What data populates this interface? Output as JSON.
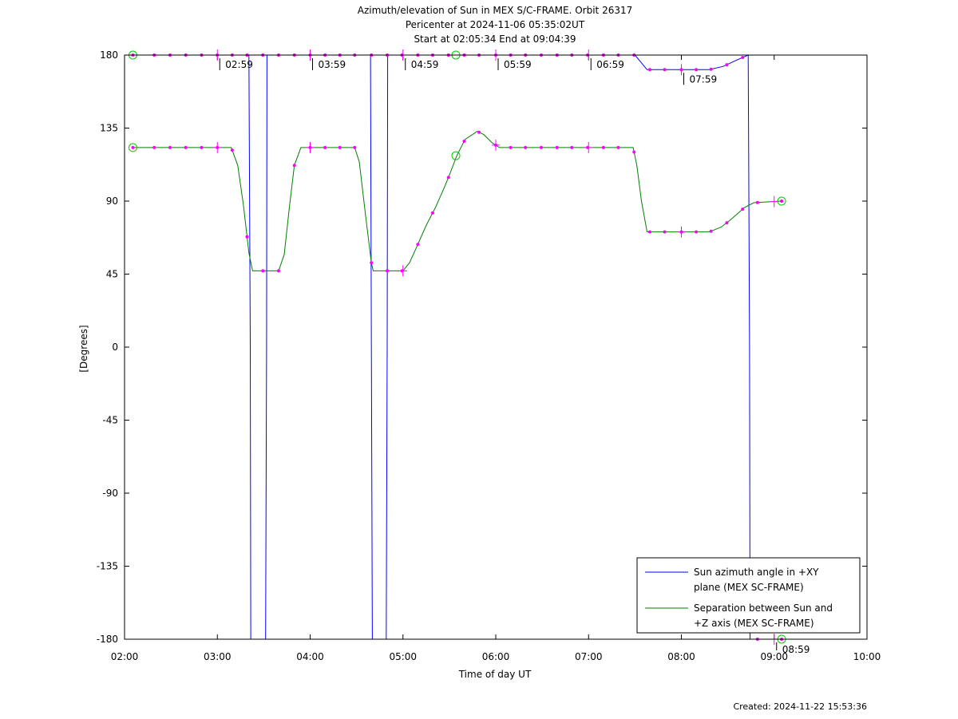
{
  "chart_data": {
    "type": "line",
    "title_lines": [
      "Azimuth/elevation of Sun in MEX S/C-FRAME.  Orbit 26317",
      "Pericenter at 2024-11-06 05:35:02UT",
      "Start at 02:05:34 End at 09:04:39"
    ],
    "xlabel": "Time of day UT",
    "ylabel": "[Degrees]",
    "xlim": [
      2.0,
      10.0
    ],
    "ylim": [
      -180,
      180
    ],
    "x_ticks": [
      {
        "value": 2,
        "label": "02:00"
      },
      {
        "value": 3,
        "label": "03:00"
      },
      {
        "value": 4,
        "label": "04:00"
      },
      {
        "value": 5,
        "label": "05:00"
      },
      {
        "value": 6,
        "label": "06:00"
      },
      {
        "value": 7,
        "label": "07:00"
      },
      {
        "value": 8,
        "label": "08:00"
      },
      {
        "value": 9,
        "label": "09:00"
      },
      {
        "value": 10,
        "label": "10:00"
      }
    ],
    "y_ticks": [
      {
        "value": 180,
        "label": "180"
      },
      {
        "value": 135,
        "label": "135"
      },
      {
        "value": 90,
        "label": "90"
      },
      {
        "value": 45,
        "label": "45"
      },
      {
        "value": 0,
        "label": "0"
      },
      {
        "value": -45,
        "label": "-45"
      },
      {
        "value": -90,
        "label": "-90"
      },
      {
        "value": -135,
        "label": "-135"
      },
      {
        "value": -180,
        "label": "-180"
      }
    ],
    "grid": false,
    "legend_position": "bottom-right",
    "series": [
      {
        "name": "Sun azimuth angle in +XY plane (MEX SC-FRAME)",
        "legend_lines": [
          "Sun azimuth angle in +XY",
          "plane (MEX SC-FRAME)"
        ],
        "color": "#0000ff",
        "x": [
          2.09,
          2.5,
          3.0,
          3.34,
          3.355,
          3.36,
          3.37,
          3.52,
          3.53,
          3.535,
          3.54,
          3.6,
          4.0,
          4.5,
          4.65,
          4.66,
          4.67,
          4.82,
          4.83,
          4.835,
          4.84,
          5.0,
          5.5,
          6.0,
          6.5,
          7.0,
          7.5,
          7.63,
          7.7,
          8.0,
          8.3,
          8.45,
          8.6,
          8.72,
          8.735,
          8.74,
          8.76,
          8.8,
          9.0,
          9.08
        ],
        "y": [
          180,
          180,
          180,
          180,
          0,
          -180,
          -180,
          -180,
          0,
          180,
          180,
          180,
          180,
          180,
          180,
          0,
          -180,
          -180,
          0,
          180,
          180,
          180,
          180,
          180,
          180,
          180,
          180,
          171,
          171,
          171,
          171,
          173,
          177,
          180,
          0,
          -180,
          -180,
          -180,
          -180,
          -180
        ]
      },
      {
        "name": "Separation between Sun and +Z axis (MEX SC-FRAME)",
        "legend_lines": [
          "Separation between Sun and",
          "+Z axis (MEX SC-FRAME)"
        ],
        "color": "#008000",
        "x": [
          2.09,
          2.5,
          3.0,
          3.15,
          3.22,
          3.28,
          3.34,
          3.38,
          3.66,
          3.72,
          3.78,
          3.83,
          3.9,
          4.0,
          4.3,
          4.48,
          4.53,
          4.6,
          4.66,
          4.68,
          5.0,
          5.07,
          5.15,
          5.25,
          5.35,
          5.45,
          5.5,
          5.58,
          5.67,
          5.8,
          5.87,
          5.96,
          6.04,
          6.15,
          6.5,
          7.0,
          7.48,
          7.52,
          7.57,
          7.63,
          7.75,
          8.0,
          8.3,
          8.43,
          8.52,
          8.6,
          8.68,
          8.78,
          9.08
        ],
        "y": [
          123,
          123,
          123,
          123,
          112,
          88,
          58,
          47,
          47,
          57,
          88,
          112,
          123,
          123,
          123,
          123,
          114,
          80,
          52,
          47,
          47,
          52,
          62,
          75,
          86,
          99,
          106,
          118,
          128,
          133,
          131,
          126,
          123,
          123,
          123,
          123,
          123,
          112,
          90,
          71,
          71,
          71,
          71,
          74,
          78,
          82,
          86,
          89,
          90
        ]
      }
    ],
    "point_markers": {
      "color": "#ff00ff",
      "x": [
        2.09,
        2.32,
        2.49,
        2.66,
        2.83,
        3.0,
        3.16,
        3.32,
        3.49,
        3.66,
        3.83,
        4.0,
        4.16,
        4.32,
        4.48,
        4.66,
        4.83,
        4.99,
        5.16,
        5.32,
        5.49,
        5.66,
        5.82,
        6.0,
        6.16,
        6.32,
        6.49,
        6.66,
        6.82,
        6.99,
        7.16,
        7.32,
        7.49,
        7.66,
        7.82,
        8.0,
        8.16,
        8.32,
        8.49,
        8.66,
        8.82,
        9.08
      ]
    },
    "hour_tick_markers": [
      3.0,
      4.0,
      5.0,
      6.0,
      7.0,
      8.0,
      9.0
    ],
    "green_circle_markers": [
      {
        "x": 2.09,
        "y": 180
      },
      {
        "x": 2.09,
        "y": 123
      },
      {
        "x": 5.57,
        "y": 180
      },
      {
        "x": 5.57,
        "y": 118
      },
      {
        "x": 9.08,
        "y": 90
      },
      {
        "x": 9.08,
        "y": -180
      }
    ],
    "orbit_labels": [
      {
        "x": 3.0,
        "y": 180,
        "text": "02:59"
      },
      {
        "x": 4.0,
        "y": 180,
        "text": "03:59"
      },
      {
        "x": 5.0,
        "y": 180,
        "text": "04:59"
      },
      {
        "x": 6.0,
        "y": 180,
        "text": "05:59"
      },
      {
        "x": 7.0,
        "y": 180,
        "text": "06:59"
      },
      {
        "x": 8.0,
        "y": 171,
        "text": "07:59"
      },
      {
        "x": 9.0,
        "y": -180,
        "text": "08:59"
      }
    ]
  },
  "footer": {
    "created": "Created: 2024-11-22 15:53:36"
  }
}
